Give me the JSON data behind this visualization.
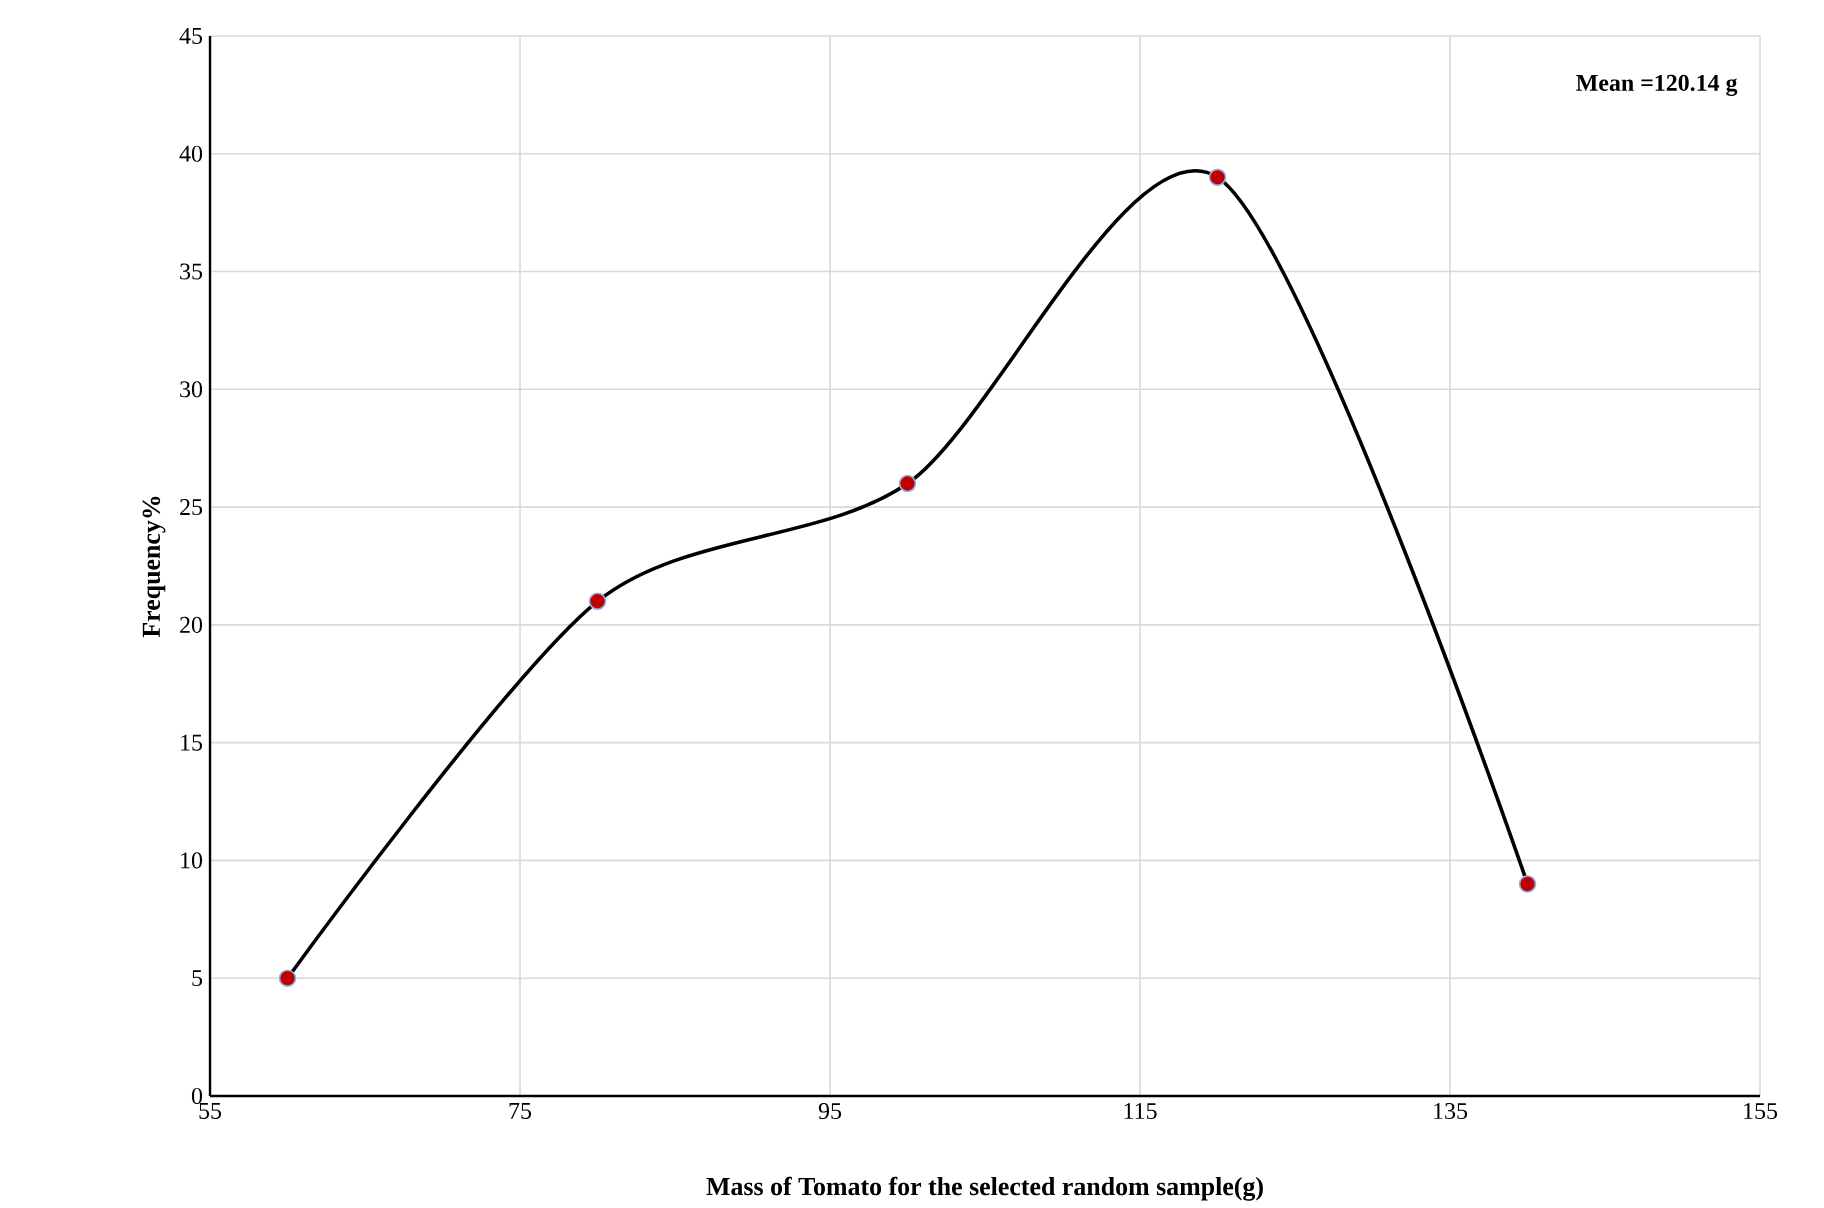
{
  "chart_data": {
    "type": "line",
    "xlabel": "Mass of Tomato  for the selected random sample(g)",
    "ylabel": "Frequency%",
    "annotations": [
      "**Mean =120.14 g**"
    ],
    "x": [
      60,
      80,
      100,
      120,
      140
    ],
    "series": [
      {
        "color": "#000000",
        "values": [
          5,
          21,
          26,
          39,
          9
        ]
      }
    ],
    "xlim": [
      55,
      155
    ],
    "xticks": [
      55,
      75,
      95,
      115,
      135,
      155
    ],
    "ylim": [
      0,
      45
    ],
    "yticks": [
      0,
      5,
      10,
      15,
      20,
      25,
      30,
      35,
      40,
      45
    ],
    "grid": true,
    "marker": "circle",
    "line_style": "solid"
  }
}
